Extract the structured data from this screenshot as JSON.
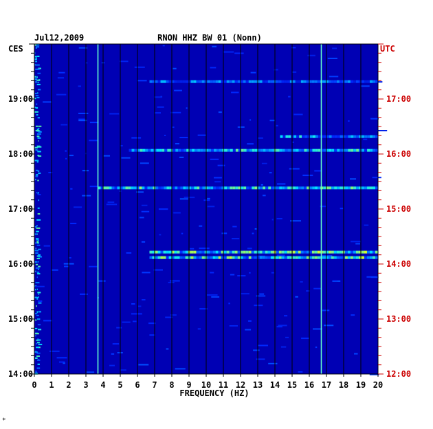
{
  "chart_data": {
    "type": "heatmap",
    "date": "Jul12,2009",
    "title": "RNON HHZ BW 01 (Nonn)",
    "xlabel": "FREQUENCY (HZ)",
    "left_axis_label": "CES",
    "right_axis_label": "UTC",
    "xlim": [
      0,
      20
    ],
    "x_ticks": [
      "0",
      "1",
      "2",
      "3",
      "4",
      "5",
      "6",
      "7",
      "8",
      "9",
      "10",
      "11",
      "12",
      "13",
      "14",
      "15",
      "16",
      "17",
      "18",
      "19",
      "20"
    ],
    "y_ticks_left": [
      "14:00",
      "15:00",
      "16:00",
      "17:00",
      "18:00",
      "19:00"
    ],
    "y_ticks_right": [
      "12:00",
      "13:00",
      "14:00",
      "15:00",
      "16:00",
      "17:00"
    ],
    "ylim_hours_local": [
      14.0,
      20.0
    ],
    "vertical_lines_hz": [
      3.7,
      16.7
    ],
    "bands": [
      {
        "time": "19:19",
        "f_start": 6.7,
        "f_end": 20.0,
        "intensity": 0.45
      },
      {
        "time": "18:19",
        "f_start": 14.3,
        "f_end": 20.0,
        "intensity": 0.55
      },
      {
        "time": "18:04",
        "f_start": 5.5,
        "f_end": 20.0,
        "intensity": 0.6
      },
      {
        "time": "17:23",
        "f_start": 3.7,
        "f_end": 20.0,
        "intensity": 0.65
      },
      {
        "time": "16:13",
        "f_start": 6.7,
        "f_end": 20.0,
        "intensity": 0.75
      },
      {
        "time": "16:07",
        "f_start": 6.7,
        "f_end": 20.0,
        "intensity": 0.7
      }
    ],
    "colors": {
      "background": "#0000b4",
      "low": "#0000ff",
      "mid": "#00ffff",
      "high": "#ffff00",
      "peak": "#ff0000",
      "axis_left": "#000000",
      "axis_right": "#cc0000"
    }
  },
  "footer_mark": "*"
}
